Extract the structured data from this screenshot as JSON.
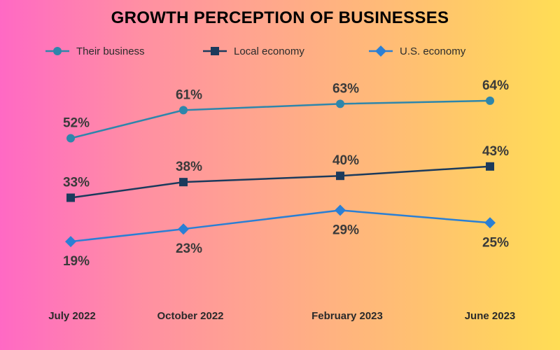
{
  "chart_data": {
    "type": "line",
    "title": "GROWTH PERCEPTION OF BUSINESSES",
    "categories": [
      "July 2022",
      "October 2022",
      "February 2023",
      "June 2023"
    ],
    "y_unit": "%",
    "grid": false,
    "legend_position": "top",
    "series": [
      {
        "name": "Their business",
        "values": [
          52,
          61,
          63,
          64
        ],
        "color": "#2e86ab",
        "marker": "circle"
      },
      {
        "name": "Local economy",
        "values": [
          33,
          38,
          40,
          43
        ],
        "color": "#1b3a5c",
        "marker": "square"
      },
      {
        "name": "U.S. economy",
        "values": [
          19,
          23,
          29,
          25
        ],
        "color": "#2a7fd4",
        "marker": "diamond"
      }
    ]
  }
}
